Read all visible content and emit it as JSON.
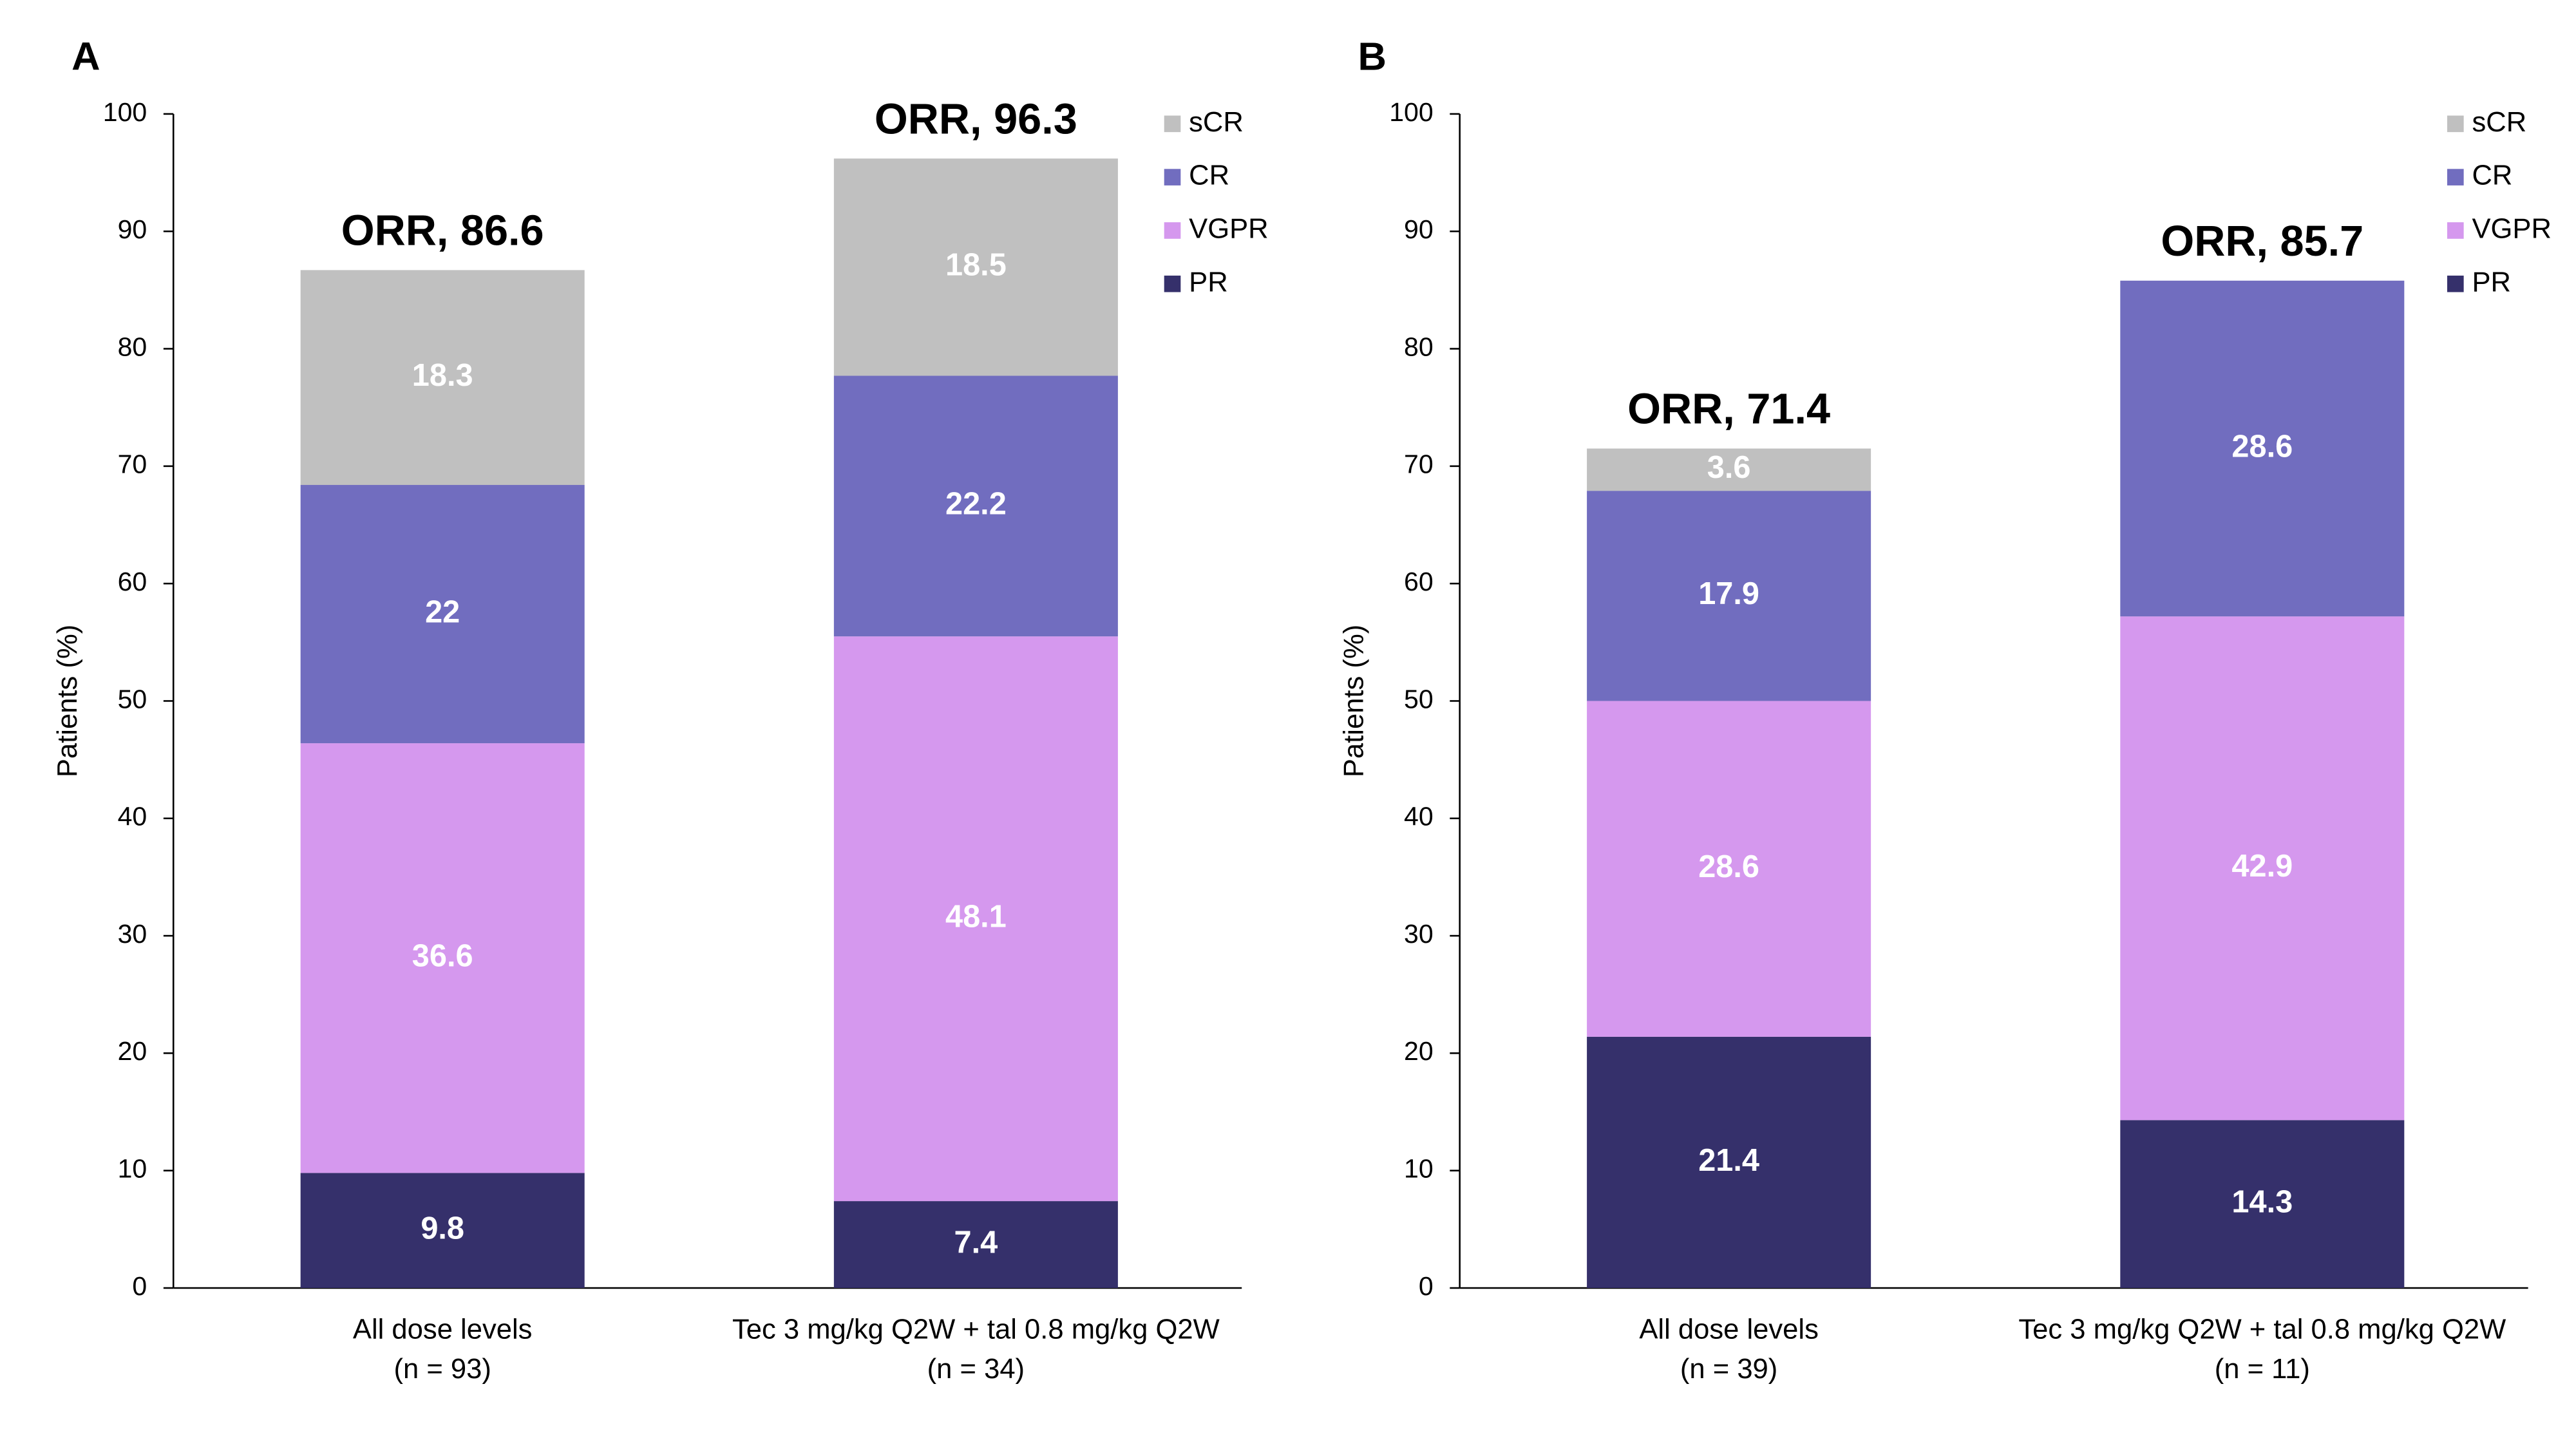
{
  "chart_data": [
    {
      "type": "bar",
      "stacked": true,
      "title": "A",
      "ylabel": "Patients (%)",
      "categories": [
        "All dose levels\n(n = 93)",
        "Tec 3 mg/kg Q2W + tal 0.8 mg/kg Q2W\n(n = 34)"
      ],
      "series": [
        {
          "name": "PR",
          "color": "#35306b",
          "values": [
            9.8,
            7.4
          ]
        },
        {
          "name": "VGPR",
          "color": "#d598ee",
          "values": [
            36.6,
            48.1
          ]
        },
        {
          "name": "CR",
          "color": "#716dbf",
          "values": [
            22,
            22.2
          ]
        },
        {
          "name": "sCR",
          "color": "#c0c0c0",
          "values": [
            18.3,
            18.5
          ]
        }
      ],
      "annotations": [
        "ORR, 86.6",
        "ORR, 96.3"
      ],
      "ylim": [
        0,
        100
      ],
      "yticks": [
        0,
        10,
        20,
        30,
        40,
        50,
        60,
        70,
        80,
        90,
        100
      ],
      "legend": "upper right"
    },
    {
      "type": "bar",
      "stacked": true,
      "title": "B",
      "ylabel": "Patients (%)",
      "categories": [
        "All dose levels\n(n = 39)",
        "Tec 3 mg/kg Q2W + tal 0.8 mg/kg Q2W\n(n = 11)"
      ],
      "series": [
        {
          "name": "PR",
          "color": "#35306b",
          "values": [
            21.4,
            14.3
          ]
        },
        {
          "name": "VGPR",
          "color": "#d598ee",
          "values": [
            28.6,
            42.9
          ]
        },
        {
          "name": "CR",
          "color": "#716dbf",
          "values": [
            17.9,
            28.6
          ]
        },
        {
          "name": "sCR",
          "color": "#c0c0c0",
          "values": [
            3.6,
            null
          ]
        }
      ],
      "annotations": [
        "ORR, 71.4",
        "ORR, 85.7"
      ],
      "ylim": [
        0,
        100
      ],
      "yticks": [
        0,
        10,
        20,
        30,
        40,
        50,
        60,
        70,
        80,
        90,
        100
      ],
      "legend": "upper right"
    }
  ]
}
